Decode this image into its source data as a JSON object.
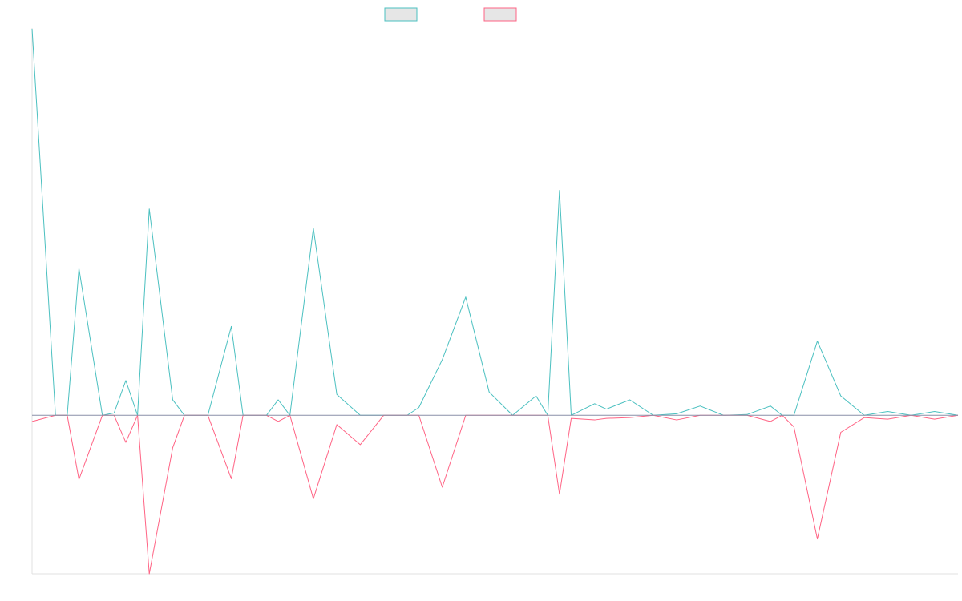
{
  "chart_data": {
    "type": "line",
    "title": "",
    "xlabel": "",
    "ylabel": "",
    "grid": false,
    "legend_position": "top-center",
    "y_range": [
      -205,
      500
    ],
    "x": [
      0,
      2,
      3,
      4,
      6,
      7,
      8,
      9,
      10,
      12,
      13,
      15,
      17,
      18,
      20,
      21,
      22,
      24,
      26,
      28,
      30,
      32,
      33,
      35,
      37,
      39,
      41,
      43,
      44,
      45,
      46,
      48,
      49,
      51,
      53,
      55,
      57,
      59,
      61,
      63,
      64,
      65,
      67,
      69,
      71,
      73,
      75,
      77,
      79
    ],
    "series": [
      {
        "color": "#4bc0c0",
        "legend_fill": "#e6e6e6",
        "values": [
          500,
          0,
          0,
          190,
          0,
          3,
          45,
          0,
          267,
          20,
          0,
          0,
          115,
          0,
          0,
          20,
          0,
          242,
          27,
          0,
          0,
          0,
          10,
          72,
          153,
          30,
          0,
          25,
          0,
          291,
          0,
          15,
          8,
          20,
          0,
          2,
          12,
          0,
          1,
          12,
          0,
          0,
          96,
          25,
          0,
          5,
          0,
          5,
          0
        ]
      },
      {
        "color": "#ff6384",
        "legend_fill": "#e6e6e6",
        "values": [
          -8,
          0,
          0,
          -83,
          0,
          0,
          -35,
          0,
          -205,
          -42,
          0,
          0,
          -82,
          0,
          0,
          -8,
          0,
          -108,
          -12,
          -38,
          0,
          0,
          0,
          -93,
          0,
          0,
          0,
          0,
          0,
          -102,
          -4,
          -6,
          -4,
          -3,
          0,
          -6,
          0,
          0,
          0,
          -8,
          0,
          -15,
          -160,
          -22,
          -3,
          -5,
          0,
          -5,
          0
        ]
      }
    ]
  }
}
